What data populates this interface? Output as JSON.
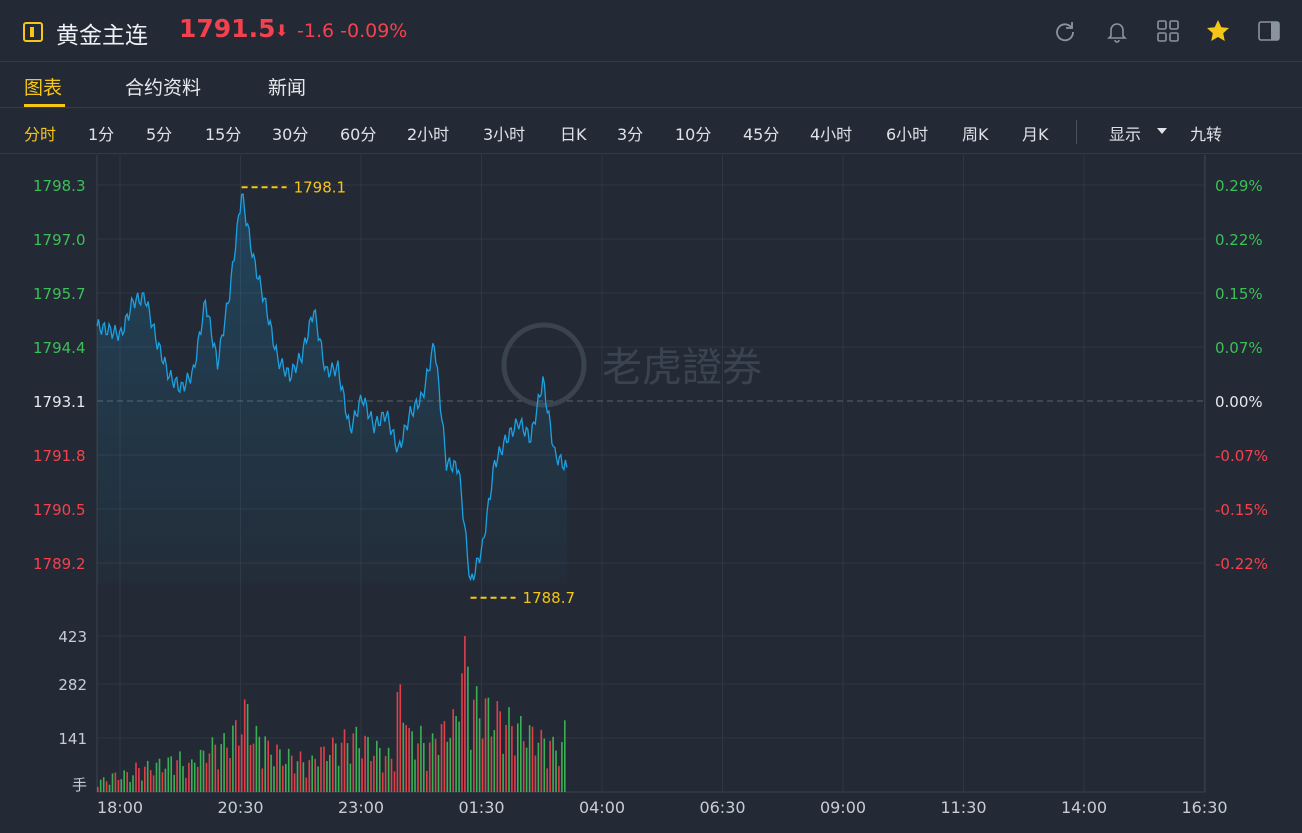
{
  "header": {
    "title": "黄金主连",
    "price": "1791.5",
    "arrow": "⬇",
    "change": "-1.6",
    "change_pct": "-0.09%",
    "icons": [
      "refresh-icon",
      "bell-icon",
      "grid-icon",
      "star-icon",
      "panel-toggle-icon"
    ]
  },
  "tabs": [
    {
      "label": "图表",
      "active": true
    },
    {
      "label": "合约资料",
      "active": false
    },
    {
      "label": "新闻",
      "active": false
    }
  ],
  "intervals": [
    "分时",
    "1分",
    "5分",
    "15分",
    "30分",
    "60分",
    "2小时",
    "3小时",
    "日K",
    "3分",
    "10分",
    "45分",
    "4小时",
    "6小时",
    "周K",
    "月K"
  ],
  "interval_active": "分时",
  "display_menu": "显示",
  "nine_turn": "九转",
  "watermark": "老虎證券",
  "colors": {
    "up": "#f5414d",
    "down": "#3dbf58",
    "line": "#1ba1e2",
    "accent": "#f5c518"
  },
  "chart_data": {
    "type": "line",
    "price_axis": {
      "ticks": [
        "1798.3",
        "1797.0",
        "1795.7",
        "1794.4",
        "1793.1",
        "1791.8",
        "1790.5",
        "1789.2"
      ],
      "pct_ticks": [
        "0.29%",
        "0.22%",
        "0.15%",
        "0.07%",
        "0.00%",
        "-0.07%",
        "-0.15%",
        "-0.22%"
      ],
      "ylim": [
        1789.2,
        1798.3
      ],
      "prev_close": 1793.1
    },
    "high_label": "1798.1",
    "low_label": "1788.7",
    "x_ticks": [
      "18:00",
      "20:30",
      "23:00",
      "01:30",
      "04:00",
      "06:30",
      "09:00",
      "11:30",
      "14:00",
      "16:30"
    ],
    "series": [
      {
        "x": [
          "18:00",
          "18:15",
          "18:30",
          "18:45",
          "19:00",
          "19:15",
          "19:30",
          "19:45",
          "20:00",
          "20:15",
          "20:30",
          "20:45",
          "21:00",
          "21:15",
          "21:30",
          "21:45",
          "22:00",
          "22:15",
          "22:30",
          "22:45",
          "23:00",
          "23:15",
          "23:30",
          "23:45",
          "00:00",
          "00:15",
          "00:30",
          "00:45",
          "01:00",
          "01:15",
          "01:30",
          "01:45",
          "02:00",
          "02:15",
          "02:30",
          "02:45",
          "03:00",
          "03:15",
          "03:30",
          "03:45"
        ],
        "values": [
          1794.9,
          1794.8,
          1794.7,
          1795.5,
          1795.6,
          1794.5,
          1793.7,
          1793.4,
          1793.8,
          1795.5,
          1794.0,
          1795.7,
          1798.1,
          1796.5,
          1795.4,
          1794.1,
          1793.7,
          1794.2,
          1795.3,
          1793.8,
          1793.9,
          1792.4,
          1793.2,
          1792.5,
          1792.8,
          1791.9,
          1792.8,
          1793.2,
          1794.5,
          1791.6,
          1791.5,
          1788.7,
          1789.6,
          1791.6,
          1792.2,
          1792.6,
          1792.2,
          1793.6,
          1791.8,
          1791.5
        ]
      }
    ],
    "volume_axis": {
      "ticks": [
        "423",
        "282",
        "141"
      ],
      "unit": "手"
    },
    "volume": {
      "values": [
        40,
        55,
        60,
        80,
        85,
        95,
        110,
        90,
        120,
        150,
        160,
        200,
        260,
        180,
        140,
        120,
        110,
        100,
        130,
        150,
        170,
        180,
        160,
        140,
        120,
        300,
        180,
        160,
        200,
        230,
        423,
        290,
        270,
        250,
        230,
        210,
        190,
        170,
        150,
        200
      ],
      "dir": [
        0,
        1,
        0,
        1,
        1,
        0,
        0,
        1,
        0,
        1,
        0,
        1,
        1,
        0,
        0,
        0,
        1,
        1,
        1,
        0,
        1,
        0,
        1,
        0,
        1,
        1,
        0,
        1,
        1,
        0,
        1,
        0,
        1,
        1,
        1,
        0,
        1,
        1,
        0,
        1
      ]
    }
  }
}
